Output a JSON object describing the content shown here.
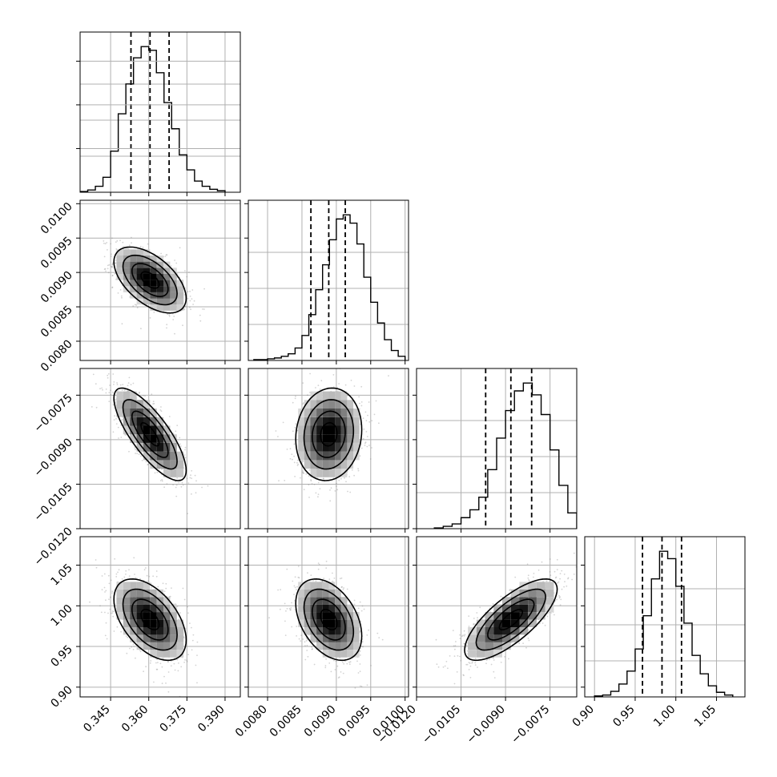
{
  "chart_data": {
    "type": "corner",
    "parameters": 4,
    "grid": true,
    "colors": {
      "hist": "#000000",
      "quantile": "#000000",
      "grid": "#b0b0b0",
      "scatter": "#808080"
    },
    "axes": [
      {
        "range": [
          0.333,
          0.396
        ],
        "ticks": [
          0.345,
          0.36,
          0.375,
          0.39
        ],
        "tick_labels": [
          "0.345",
          "0.360",
          "0.375",
          "0.390"
        ]
      },
      {
        "range": [
          0.00772,
          0.01005
        ],
        "ticks": [
          0.008,
          0.0085,
          0.009,
          0.0095,
          0.01
        ],
        "tick_labels": [
          "0.0080",
          "0.0085",
          "0.0090",
          "0.0095",
          "0.0100"
        ]
      },
      {
        "range": [
          -0.012,
          -0.0066
        ],
        "ticks": [
          -0.012,
          -0.0105,
          -0.009,
          -0.0075
        ],
        "tick_labels": [
          "−0.0120",
          "−0.0105",
          "−0.0090",
          "−0.0075"
        ]
      },
      {
        "range": [
          0.888,
          1.085
        ],
        "ticks": [
          0.9,
          0.95,
          1.0,
          1.05
        ],
        "tick_labels": [
          "0.90",
          "0.95",
          "1.00",
          "1.05"
        ]
      }
    ],
    "marginals": [
      {
        "quantiles": [
          0.353,
          0.3605,
          0.368
        ],
        "bins": [
          0.333,
          0.336,
          0.339,
          0.342,
          0.345,
          0.348,
          0.351,
          0.354,
          0.357,
          0.36,
          0.363,
          0.366,
          0.369,
          0.372,
          0.375,
          0.378,
          0.381,
          0.384,
          0.387,
          0.39
        ],
        "counts": [
          1,
          3,
          8,
          20,
          55,
          105,
          145,
          180,
          195,
          190,
          160,
          120,
          85,
          50,
          30,
          15,
          8,
          4,
          2
        ]
      },
      {
        "quantiles": [
          0.00863,
          0.00889,
          0.00913
        ],
        "bins": [
          0.0078,
          0.0079,
          0.008,
          0.0081,
          0.0082,
          0.0083,
          0.0084,
          0.0085,
          0.0086,
          0.0087,
          0.0088,
          0.0089,
          0.009,
          0.0091,
          0.0092,
          0.0093,
          0.0094,
          0.0095,
          0.0096,
          0.0097,
          0.0098,
          0.0099,
          0.01
        ],
        "counts": [
          1,
          1,
          2,
          3,
          5,
          8,
          15,
          30,
          55,
          85,
          115,
          145,
          170,
          175,
          165,
          140,
          100,
          70,
          45,
          25,
          12,
          5
        ]
      },
      {
        "quantiles": [
          -0.00967,
          -0.00882,
          -0.00812
        ],
        "bins": [
          -0.0114,
          -0.0111,
          -0.0108,
          -0.0105,
          -0.0102,
          -0.0099,
          -0.0096,
          -0.0093,
          -0.009,
          -0.0087,
          -0.0084,
          -0.0081,
          -0.0078,
          -0.0075,
          -0.0072,
          -0.0069,
          -0.0066
        ],
        "counts": [
          1,
          3,
          6,
          14,
          24,
          40,
          75,
          115,
          150,
          175,
          185,
          170,
          145,
          100,
          55,
          20
        ]
      },
      {
        "quantiles": [
          0.959,
          0.983,
          1.007
        ],
        "bins": [
          0.9,
          0.91,
          0.92,
          0.93,
          0.94,
          0.95,
          0.96,
          0.97,
          0.98,
          0.99,
          1.0,
          1.01,
          1.02,
          1.03,
          1.04,
          1.05,
          1.06,
          1.07
        ],
        "counts": [
          1,
          2,
          6,
          14,
          28,
          52,
          88,
          128,
          158,
          150,
          120,
          80,
          45,
          25,
          12,
          5,
          2
        ]
      }
    ],
    "joints": [
      {
        "x": 0,
        "y": 1,
        "center": [
          0.3605,
          0.00889
        ],
        "sd": [
          0.0071,
          0.00024
        ],
        "rho": -0.55
      },
      {
        "x": 0,
        "y": 2,
        "center": [
          0.3605,
          -0.00882
        ],
        "sd": [
          0.0071,
          0.00078
        ],
        "rho": -0.78
      },
      {
        "x": 1,
        "y": 2,
        "center": [
          0.00889,
          -0.00882
        ],
        "sd": [
          0.00024,
          0.00078
        ],
        "rho": 0.1
      },
      {
        "x": 0,
        "y": 3,
        "center": [
          0.3605,
          0.983
        ],
        "sd": [
          0.0071,
          0.025
        ],
        "rho": -0.5
      },
      {
        "x": 1,
        "y": 3,
        "center": [
          0.00889,
          0.983
        ],
        "sd": [
          0.00024,
          0.025
        ],
        "rho": -0.4
      },
      {
        "x": 2,
        "y": 3,
        "center": [
          -0.00882,
          0.983
        ],
        "sd": [
          0.00078,
          0.025
        ],
        "rho": 0.75
      }
    ],
    "contour_levels_sigma": [
      0.5,
      1.0,
      1.5,
      2.0
    ]
  }
}
